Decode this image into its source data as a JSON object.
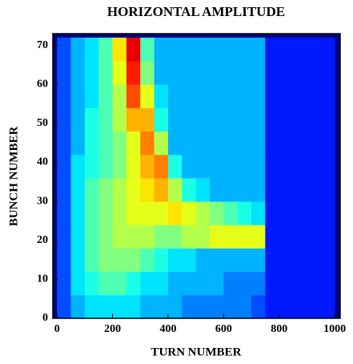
{
  "chart_data": {
    "type": "heatmap",
    "title": "HORIZONTAL  AMPLITUDE",
    "xlabel": "TURN NUMBER",
    "ylabel": "BUNCH NUMBER",
    "xbins": [
      0,
      50,
      100,
      150,
      200,
      250,
      300,
      350,
      400,
      450,
      500,
      550,
      600,
      650,
      700,
      750,
      800,
      850,
      900,
      950,
      1000
    ],
    "ybins": [
      0,
      6,
      12,
      18,
      24,
      30,
      36,
      42,
      48,
      54,
      60,
      66,
      72
    ],
    "values": [
      [
        0.2,
        0.3,
        0.35,
        0.35,
        0.35,
        0.35,
        0.3,
        0.3,
        0.3,
        0.25,
        0.25,
        0.25,
        0.25,
        0.25,
        0.2,
        0.15,
        0.15,
        0.15,
        0.15,
        0.15
      ],
      [
        0.2,
        0.35,
        0.4,
        0.45,
        0.45,
        0.4,
        0.35,
        0.35,
        0.3,
        0.3,
        0.3,
        0.3,
        0.25,
        0.25,
        0.25,
        0.15,
        0.15,
        0.15,
        0.15,
        0.15
      ],
      [
        0.2,
        0.35,
        0.45,
        0.5,
        0.5,
        0.5,
        0.45,
        0.4,
        0.35,
        0.35,
        0.3,
        0.3,
        0.3,
        0.3,
        0.3,
        0.15,
        0.15,
        0.15,
        0.15,
        0.15
      ],
      [
        0.2,
        0.35,
        0.45,
        0.5,
        0.55,
        0.55,
        0.55,
        0.5,
        0.5,
        0.55,
        0.55,
        0.6,
        0.6,
        0.6,
        0.6,
        0.15,
        0.15,
        0.15,
        0.15,
        0.15
      ],
      [
        0.2,
        0.35,
        0.45,
        0.5,
        0.55,
        0.6,
        0.6,
        0.6,
        0.65,
        0.6,
        0.55,
        0.5,
        0.45,
        0.4,
        0.35,
        0.15,
        0.15,
        0.15,
        0.15,
        0.15
      ],
      [
        0.2,
        0.35,
        0.45,
        0.5,
        0.55,
        0.6,
        0.65,
        0.7,
        0.55,
        0.4,
        0.35,
        0.3,
        0.3,
        0.3,
        0.3,
        0.15,
        0.15,
        0.15,
        0.15,
        0.15
      ],
      [
        0.2,
        0.35,
        0.4,
        0.45,
        0.5,
        0.6,
        0.7,
        0.75,
        0.4,
        0.3,
        0.3,
        0.3,
        0.3,
        0.3,
        0.3,
        0.15,
        0.15,
        0.15,
        0.15,
        0.15
      ],
      [
        0.2,
        0.3,
        0.4,
        0.45,
        0.5,
        0.6,
        0.75,
        0.55,
        0.3,
        0.3,
        0.3,
        0.3,
        0.3,
        0.3,
        0.3,
        0.15,
        0.15,
        0.15,
        0.15,
        0.15
      ],
      [
        0.2,
        0.3,
        0.4,
        0.45,
        0.55,
        0.7,
        0.7,
        0.4,
        0.3,
        0.3,
        0.3,
        0.3,
        0.3,
        0.3,
        0.3,
        0.15,
        0.15,
        0.15,
        0.15,
        0.15
      ],
      [
        0.2,
        0.3,
        0.35,
        0.45,
        0.55,
        0.8,
        0.6,
        0.35,
        0.3,
        0.3,
        0.3,
        0.3,
        0.3,
        0.3,
        0.3,
        0.15,
        0.15,
        0.15,
        0.15,
        0.15
      ],
      [
        0.2,
        0.3,
        0.35,
        0.45,
        0.6,
        0.85,
        0.5,
        0.3,
        0.3,
        0.3,
        0.3,
        0.3,
        0.3,
        0.3,
        0.3,
        0.15,
        0.15,
        0.15,
        0.15,
        0.15
      ],
      [
        0.2,
        0.3,
        0.35,
        0.45,
        0.65,
        0.9,
        0.45,
        0.3,
        0.3,
        0.3,
        0.3,
        0.3,
        0.3,
        0.3,
        0.3,
        0.15,
        0.15,
        0.15,
        0.15,
        0.15
      ]
    ],
    "zlim": [
      0,
      1
    ],
    "colorscale": [
      [
        0,
        "#000080"
      ],
      [
        0.125,
        "#0000ff"
      ],
      [
        0.375,
        "#00ffff"
      ],
      [
        0.625,
        "#ffff00"
      ],
      [
        0.875,
        "#ff0000"
      ],
      [
        1,
        "#800000"
      ]
    ],
    "xlim": [
      -15,
      1020
    ],
    "ylim": [
      0,
      73
    ],
    "xticks": [
      0,
      200,
      400,
      600,
      800,
      1000
    ],
    "yticks": [
      0,
      10,
      20,
      30,
      40,
      50,
      60,
      70
    ]
  }
}
